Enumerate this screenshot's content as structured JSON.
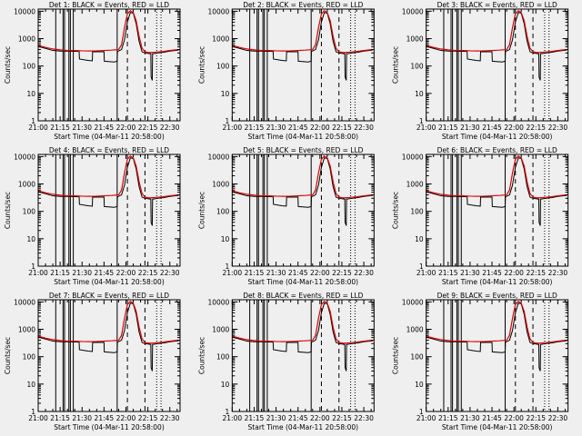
{
  "chart_data": {
    "type": "line",
    "layout": "3x3 grid of panels",
    "xlabel": "Start Time (04-Mar-11 20:58:00)",
    "ylabel": "Counts/sec",
    "x_tick_labels": [
      "21:00",
      "21:15",
      "21:30",
      "21:45",
      "22:00",
      "22:15",
      "22:30"
    ],
    "x_tick_minutes": [
      0,
      15,
      30,
      45,
      60,
      75,
      90
    ],
    "xlim_minutes": [
      0,
      97
    ],
    "y_scale": "log",
    "ylim": [
      1,
      12000
    ],
    "y_tick_labels": [
      "1",
      "10",
      "100",
      "1000",
      "10000"
    ],
    "y_tick_values": [
      1,
      10,
      100,
      1000,
      10000
    ],
    "series_colors": {
      "events": "#000000",
      "lld": "#e00000"
    },
    "panels": [
      {
        "title": "Det 1: BLACK = Events, RED = LLD"
      },
      {
        "title": "Det 2: BLACK = Events, RED = LLD"
      },
      {
        "title": "Det 3: BLACK = Events, RED = LLD"
      },
      {
        "title": "Det 4: BLACK = Events, RED = LLD"
      },
      {
        "title": "Det 5: BLACK = Events, RED = LLD"
      },
      {
        "title": "Det 6: BLACK = Events, RED = LLD"
      },
      {
        "title": "Det 7: BLACK = Events, RED = LLD"
      },
      {
        "title": "Det 8: BLACK = Events, RED = LLD"
      },
      {
        "title": "Det 9: BLACK = Events, RED = LLD"
      }
    ],
    "series": [
      {
        "name": "Events",
        "color": "black",
        "points": [
          [
            0,
            520
          ],
          [
            5,
            440
          ],
          [
            10,
            370
          ],
          [
            15,
            350
          ],
          [
            20,
            350
          ],
          [
            25,
            345
          ],
          [
            28,
            340
          ],
          [
            28.2,
            180
          ],
          [
            34,
            160
          ],
          [
            37,
            155
          ],
          [
            37.2,
            330
          ],
          [
            42,
            330
          ],
          [
            45,
            335
          ],
          [
            45.2,
            150
          ],
          [
            52,
            140
          ],
          [
            54,
            150
          ],
          [
            54.2,
            340
          ],
          [
            57,
            400
          ],
          [
            59,
            900
          ],
          [
            61,
            4000
          ],
          [
            63,
            9000
          ],
          [
            65,
            8500
          ],
          [
            67,
            3500
          ],
          [
            69,
            800
          ],
          [
            71,
            330
          ],
          [
            73,
            300
          ],
          [
            75,
            290
          ],
          [
            77,
            280
          ],
          [
            77.2,
            40
          ],
          [
            78,
            30
          ],
          [
            78.2,
            280
          ],
          [
            82,
            300
          ],
          [
            86,
            320
          ],
          [
            90,
            350
          ],
          [
            94,
            370
          ],
          [
            96,
            380
          ]
        ]
      },
      {
        "name": "LLD",
        "color": "red",
        "points": [
          [
            0,
            560
          ],
          [
            5,
            480
          ],
          [
            10,
            420
          ],
          [
            15,
            390
          ],
          [
            20,
            370
          ],
          [
            25,
            370
          ],
          [
            30,
            360
          ],
          [
            35,
            355
          ],
          [
            40,
            360
          ],
          [
            45,
            370
          ],
          [
            50,
            380
          ],
          [
            55,
            400
          ],
          [
            57,
            600
          ],
          [
            59,
            2500
          ],
          [
            61,
            8000
          ],
          [
            63,
            10500
          ],
          [
            65,
            9000
          ],
          [
            67,
            4500
          ],
          [
            69,
            1200
          ],
          [
            71,
            450
          ],
          [
            73,
            330
          ],
          [
            76,
            310
          ],
          [
            80,
            320
          ],
          [
            85,
            340
          ],
          [
            90,
            370
          ],
          [
            94,
            390
          ],
          [
            96,
            400
          ]
        ]
      }
    ],
    "solid_vertical_lines_min": [
      12,
      17,
      18,
      21,
      22,
      24,
      54
    ],
    "dashed_vertical_lines_min": [
      61,
      73
    ],
    "dotted_vertical_lines_min": [
      81,
      84
    ]
  }
}
